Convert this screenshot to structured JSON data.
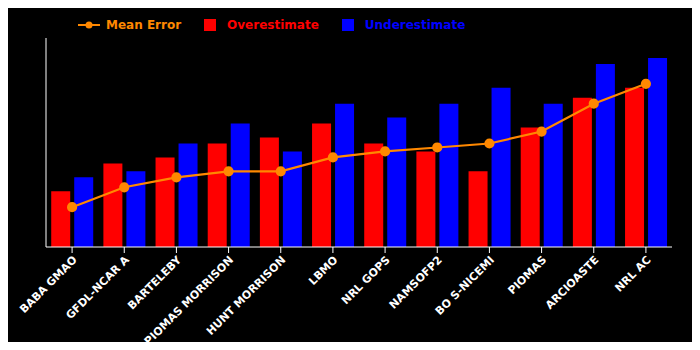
{
  "chart_data": {
    "type": "bar",
    "categories": [
      "BABA GMAO",
      "GFDL-NCAR A",
      "BARTELEBY",
      "PIOMAS MORRISON",
      "HUNT MORRISON",
      "LBMO",
      "NRL GOPS",
      "NAMSOFP2",
      "BO S-NICEMI",
      "PIOMAS",
      "ARCIOASTE",
      "NRL AC"
    ],
    "series": [
      {
        "name": "Mean Error",
        "type": "line",
        "color": "#ff8800",
        "marker": "o",
        "values": [
          0.2,
          0.3,
          0.35,
          0.38,
          0.38,
          0.45,
          0.48,
          0.5,
          0.52,
          0.58,
          0.72,
          0.82
        ]
      },
      {
        "name": "Overestimate",
        "type": "bar",
        "color": "#ff0000",
        "values": [
          0.28,
          0.42,
          0.45,
          0.52,
          0.55,
          0.62,
          0.52,
          0.48,
          0.38,
          0.6,
          0.75,
          0.8
        ]
      },
      {
        "name": "Underestimate",
        "type": "bar",
        "color": "#0000ff",
        "values": [
          0.35,
          0.38,
          0.52,
          0.62,
          0.48,
          0.72,
          0.65,
          0.72,
          0.8,
          0.72,
          0.92,
          0.95
        ]
      }
    ],
    "ylim": [
      0,
      1.05
    ],
    "tick_labels": "x",
    "legend": "upper left",
    "grid": false
  }
}
